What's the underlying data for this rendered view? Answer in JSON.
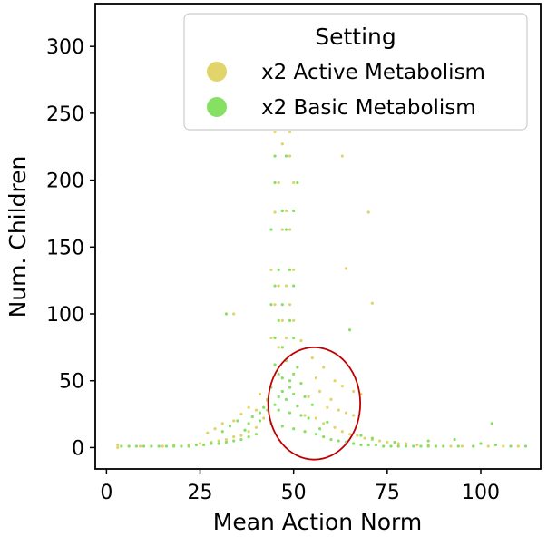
{
  "chart_data": {
    "type": "scatter",
    "xlabel": "Mean Action Norm",
    "ylabel": "Num. Children",
    "xlim": [
      -3,
      116
    ],
    "ylim": [
      -16,
      332
    ],
    "xticks": [
      0,
      25,
      50,
      75,
      100
    ],
    "yticks": [
      0,
      50,
      100,
      150,
      200,
      250,
      300
    ],
    "x_tick_labels": [
      "0",
      "25",
      "50",
      "75",
      "100"
    ],
    "y_tick_labels": [
      "0",
      "50",
      "100",
      "150",
      "200",
      "250",
      "300"
    ],
    "legend": {
      "title": "Setting",
      "placement": "top-right"
    },
    "series": [
      {
        "name": "x2 Active Metabolism",
        "color": "#e0d46a",
        "points": [
          [
            44,
            316
          ],
          [
            47,
            316
          ],
          [
            50,
            316
          ],
          [
            44,
            306
          ],
          [
            49,
            306
          ],
          [
            45,
            295
          ],
          [
            50,
            295
          ],
          [
            43,
            287
          ],
          [
            48,
            287
          ],
          [
            46,
            275
          ],
          [
            51,
            275
          ],
          [
            44,
            264
          ],
          [
            49,
            264
          ],
          [
            47,
            255
          ],
          [
            46,
            246
          ],
          [
            50,
            246
          ],
          [
            45,
            236
          ],
          [
            49,
            236
          ],
          [
            47,
            227
          ],
          [
            63,
            218
          ],
          [
            45,
            218
          ],
          [
            49,
            218
          ],
          [
            46,
            198
          ],
          [
            50,
            198
          ],
          [
            48,
            177
          ],
          [
            45,
            176
          ],
          [
            70,
            176
          ],
          [
            47,
            163
          ],
          [
            49,
            163
          ],
          [
            64,
            134
          ],
          [
            44,
            133
          ],
          [
            50,
            133
          ],
          [
            46,
            121
          ],
          [
            48,
            121
          ],
          [
            71,
            108
          ],
          [
            45,
            107
          ],
          [
            49,
            107
          ],
          [
            34,
            100
          ],
          [
            47,
            95
          ],
          [
            50,
            95
          ],
          [
            44,
            82
          ],
          [
            48,
            82
          ],
          [
            52,
            80
          ],
          [
            46,
            75
          ],
          [
            55,
            67
          ],
          [
            58,
            60
          ],
          [
            56,
            52
          ],
          [
            61,
            50
          ],
          [
            63,
            46
          ],
          [
            66,
            42
          ],
          [
            68,
            40
          ],
          [
            57,
            42
          ],
          [
            54,
            38
          ],
          [
            60,
            36
          ],
          [
            59,
            30
          ],
          [
            62,
            28
          ],
          [
            64,
            26
          ],
          [
            66,
            24
          ],
          [
            53,
            24
          ],
          [
            56,
            22
          ],
          [
            58,
            18
          ],
          [
            61,
            15
          ],
          [
            63,
            12
          ],
          [
            65,
            10
          ],
          [
            67,
            9
          ],
          [
            69,
            7
          ],
          [
            71,
            6
          ],
          [
            73,
            5
          ],
          [
            75,
            4
          ],
          [
            78,
            3
          ],
          [
            80,
            3
          ],
          [
            83,
            2
          ],
          [
            86,
            2
          ],
          [
            88,
            1
          ],
          [
            92,
            1
          ],
          [
            95,
            1
          ],
          [
            98,
            1
          ],
          [
            102,
            1
          ],
          [
            106,
            1
          ],
          [
            110,
            1
          ],
          [
            103,
            18
          ],
          [
            40,
            15
          ],
          [
            38,
            12
          ],
          [
            36,
            9
          ],
          [
            34,
            8
          ],
          [
            32,
            6
          ],
          [
            30,
            5
          ],
          [
            28,
            4
          ],
          [
            25,
            3
          ],
          [
            22,
            2
          ],
          [
            18,
            2
          ],
          [
            15,
            1
          ],
          [
            12,
            1
          ],
          [
            9,
            1
          ],
          [
            6,
            1
          ],
          [
            3,
            0
          ],
          [
            3,
            2
          ],
          [
            42,
            22
          ],
          [
            40,
            28
          ],
          [
            43,
            35
          ],
          [
            41,
            40
          ],
          [
            38,
            30
          ],
          [
            36,
            25
          ],
          [
            34,
            20
          ],
          [
            31,
            18
          ],
          [
            29,
            14
          ],
          [
            27,
            11
          ]
        ]
      },
      {
        "name": "x2 Basic Metabolism",
        "color": "#86e063",
        "points": [
          [
            45,
            218
          ],
          [
            48,
            218
          ],
          [
            51,
            198
          ],
          [
            45,
            198
          ],
          [
            47,
            177
          ],
          [
            50,
            177
          ],
          [
            44,
            163
          ],
          [
            48,
            163
          ],
          [
            46,
            133
          ],
          [
            49,
            133
          ],
          [
            45,
            121
          ],
          [
            50,
            121
          ],
          [
            47,
            107
          ],
          [
            44,
            107
          ],
          [
            49,
            95
          ],
          [
            46,
            95
          ],
          [
            45,
            82
          ],
          [
            50,
            82
          ],
          [
            47,
            75
          ],
          [
            32,
            100
          ],
          [
            65,
            88
          ],
          [
            48,
            65
          ],
          [
            45,
            62
          ],
          [
            51,
            60
          ],
          [
            46,
            55
          ],
          [
            49,
            50
          ],
          [
            52,
            48
          ],
          [
            44,
            45
          ],
          [
            47,
            42
          ],
          [
            50,
            40
          ],
          [
            53,
            38
          ],
          [
            43,
            36
          ],
          [
            55,
            32
          ],
          [
            42,
            30
          ],
          [
            46,
            28
          ],
          [
            49,
            26
          ],
          [
            52,
            24
          ],
          [
            54,
            22
          ],
          [
            41,
            20
          ],
          [
            44,
            18
          ],
          [
            47,
            16
          ],
          [
            50,
            14
          ],
          [
            53,
            12
          ],
          [
            56,
            10
          ],
          [
            40,
            10
          ],
          [
            38,
            8
          ],
          [
            58,
            8
          ],
          [
            36,
            6
          ],
          [
            60,
            6
          ],
          [
            34,
            5
          ],
          [
            62,
            5
          ],
          [
            32,
            4
          ],
          [
            64,
            4
          ],
          [
            30,
            3
          ],
          [
            66,
            3
          ],
          [
            28,
            3
          ],
          [
            68,
            2
          ],
          [
            26,
            2
          ],
          [
            70,
            2
          ],
          [
            24,
            2
          ],
          [
            72,
            2
          ],
          [
            22,
            1
          ],
          [
            74,
            1
          ],
          [
            20,
            1
          ],
          [
            76,
            1
          ],
          [
            18,
            1
          ],
          [
            78,
            1
          ],
          [
            16,
            1
          ],
          [
            80,
            1
          ],
          [
            14,
            1
          ],
          [
            82,
            1
          ],
          [
            12,
            1
          ],
          [
            84,
            1
          ],
          [
            10,
            1
          ],
          [
            86,
            1
          ],
          [
            8,
            1
          ],
          [
            88,
            1
          ],
          [
            6,
            1
          ],
          [
            90,
            1
          ],
          [
            4,
            1
          ],
          [
            94,
            1
          ],
          [
            98,
            1
          ],
          [
            100,
            3
          ],
          [
            104,
            2
          ],
          [
            108,
            1
          ],
          [
            112,
            1
          ],
          [
            103,
            18
          ],
          [
            93,
            6
          ],
          [
            86,
            5
          ],
          [
            77,
            4
          ],
          [
            71,
            7
          ],
          [
            68,
            9
          ],
          [
            57,
            14
          ],
          [
            59,
            19
          ],
          [
            35,
            20
          ],
          [
            33,
            16
          ],
          [
            38,
            18
          ],
          [
            31,
            12
          ],
          [
            41,
            26
          ],
          [
            39,
            23
          ],
          [
            37,
            13
          ],
          [
            43,
            28
          ],
          [
            45,
            32
          ],
          [
            48,
            36
          ],
          [
            51,
            31
          ],
          [
            46,
            38
          ],
          [
            49,
            45
          ],
          [
            47,
            52
          ],
          [
            50,
            55
          ]
        ]
      }
    ],
    "annotations": [
      {
        "type": "circle",
        "center": [
          55.5,
          33
        ],
        "radius_x_data": 12.3,
        "radius_y_data": 42,
        "color": "#c00000"
      }
    ]
  }
}
